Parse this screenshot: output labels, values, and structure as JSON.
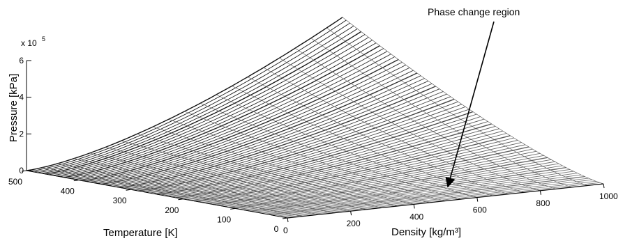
{
  "chart_data": {
    "type": "surface",
    "title": "",
    "xlabel": "Density [kg/m³]",
    "ylabel": "Temperature [K]",
    "zlabel": "Pressure [kPa]",
    "z_multiplier_label": "x 10",
    "z_multiplier_exponent": "5",
    "xlim": [
      0,
      1000
    ],
    "ylim": [
      0,
      500
    ],
    "zlim": [
      0,
      600000
    ],
    "x_ticks": [
      "0",
      "200",
      "400",
      "600",
      "800",
      "1000"
    ],
    "y_ticks": [
      "0",
      "100",
      "200",
      "300",
      "400",
      "500"
    ],
    "z_ticks": [
      "0",
      "2",
      "4",
      "6"
    ],
    "max_pressure": 650000,
    "grid": false,
    "colormap": "gray",
    "annotation": {
      "text": "Phase change region",
      "target_density": 540,
      "target_temperature": 10
    }
  }
}
